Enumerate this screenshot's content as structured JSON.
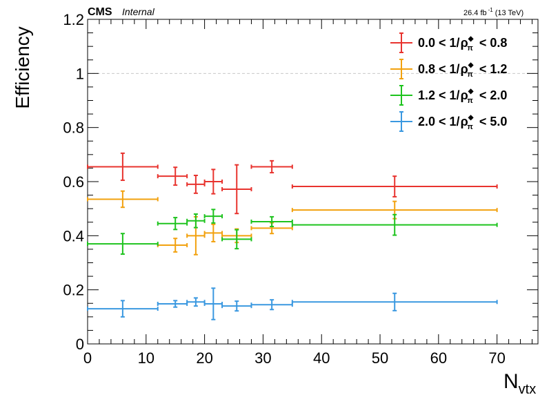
{
  "header": {
    "experiment": "CMS",
    "status": "Internal",
    "lumi_value": "26.4 fb",
    "lumi_exp": "-1",
    "energy": "(13 TeV)"
  },
  "chart_data": {
    "type": "scatter",
    "xlabel": "N",
    "xlabel_sub": "vtx",
    "ylabel": "Efficiency",
    "xlim": [
      0,
      77
    ],
    "ylim": [
      0,
      1.2
    ],
    "x_ticks": [
      "0",
      "10",
      "20",
      "30",
      "40",
      "50",
      "60",
      "70"
    ],
    "y_ticks": [
      "0",
      "0.2",
      "0.4",
      "0.6",
      "0.8",
      "1",
      "1.2"
    ],
    "reference_line": {
      "y": 1,
      "style": "dashed",
      "color": "#c8c8c8"
    },
    "grid": false,
    "legend_placement": "top-right",
    "series": [
      {
        "name": "0.0 < 1/ρπ◆ < 0.8",
        "label_lo": "0.0",
        "label_hi": "0.8",
        "color": "#e8332e",
        "points": [
          {
            "x": 6,
            "xlo": 0,
            "xhi": 12,
            "y": 0.655,
            "err": 0.05
          },
          {
            "x": 15,
            "xlo": 12,
            "xhi": 17,
            "y": 0.62,
            "err": 0.033
          },
          {
            "x": 18.5,
            "xlo": 17,
            "xhi": 20,
            "y": 0.59,
            "err": 0.033
          },
          {
            "x": 21.5,
            "xlo": 20,
            "xhi": 23,
            "y": 0.6,
            "err": 0.045
          },
          {
            "x": 25.5,
            "xlo": 23,
            "xhi": 28,
            "y": 0.572,
            "err": 0.09
          },
          {
            "x": 31.5,
            "xlo": 28,
            "xhi": 35,
            "y": 0.655,
            "err": 0.022
          },
          {
            "x": 52.5,
            "xlo": 35,
            "xhi": 70,
            "y": 0.582,
            "err": 0.038
          }
        ]
      },
      {
        "name": "0.8 < 1/ρπ◆ < 1.2",
        "label_lo": "0.8",
        "label_hi": "1.2",
        "color": "#f2a10e",
        "points": [
          {
            "x": 6,
            "xlo": 0,
            "xhi": 12,
            "y": 0.535,
            "err": 0.03
          },
          {
            "x": 15,
            "xlo": 12,
            "xhi": 17,
            "y": 0.365,
            "err": 0.025
          },
          {
            "x": 18.5,
            "xlo": 17,
            "xhi": 20,
            "y": 0.4,
            "err": 0.07
          },
          {
            "x": 21.5,
            "xlo": 20,
            "xhi": 23,
            "y": 0.41,
            "err": 0.032
          },
          {
            "x": 25.5,
            "xlo": 23,
            "xhi": 28,
            "y": 0.4,
            "err": 0.025
          },
          {
            "x": 31.5,
            "xlo": 28,
            "xhi": 35,
            "y": 0.428,
            "err": 0.02
          },
          {
            "x": 52.5,
            "xlo": 35,
            "xhi": 70,
            "y": 0.495,
            "err": 0.032
          }
        ]
      },
      {
        "name": "1.2 < 1/ρπ◆ < 2.0",
        "label_lo": "1.2",
        "label_hi": "2.0",
        "color": "#1ec31e",
        "points": [
          {
            "x": 6,
            "xlo": 0,
            "xhi": 12,
            "y": 0.37,
            "err": 0.038
          },
          {
            "x": 15,
            "xlo": 12,
            "xhi": 17,
            "y": 0.445,
            "err": 0.022
          },
          {
            "x": 18.5,
            "xlo": 17,
            "xhi": 20,
            "y": 0.455,
            "err": 0.025
          },
          {
            "x": 21.5,
            "xlo": 20,
            "xhi": 23,
            "y": 0.472,
            "err": 0.025
          },
          {
            "x": 25.5,
            "xlo": 23,
            "xhi": 28,
            "y": 0.387,
            "err": 0.035
          },
          {
            "x": 31.5,
            "xlo": 28,
            "xhi": 35,
            "y": 0.452,
            "err": 0.018
          },
          {
            "x": 52.5,
            "xlo": 35,
            "xhi": 70,
            "y": 0.44,
            "err": 0.038
          }
        ]
      },
      {
        "name": "2.0 < 1/ρπ◆ < 5.0",
        "label_lo": "2.0",
        "label_hi": "5.0",
        "color": "#3a98e0",
        "points": [
          {
            "x": 6,
            "xlo": 0,
            "xhi": 12,
            "y": 0.13,
            "err": 0.03
          },
          {
            "x": 15,
            "xlo": 12,
            "xhi": 17,
            "y": 0.148,
            "err": 0.012
          },
          {
            "x": 18.5,
            "xlo": 17,
            "xhi": 20,
            "y": 0.155,
            "err": 0.015
          },
          {
            "x": 21.5,
            "xlo": 20,
            "xhi": 23,
            "y": 0.148,
            "err": 0.058
          },
          {
            "x": 25.5,
            "xlo": 23,
            "xhi": 28,
            "y": 0.14,
            "err": 0.018
          },
          {
            "x": 31.5,
            "xlo": 28,
            "xhi": 35,
            "y": 0.145,
            "err": 0.018
          },
          {
            "x": 52.5,
            "xlo": 35,
            "xhi": 70,
            "y": 0.155,
            "err": 0.032
          }
        ]
      }
    ]
  }
}
